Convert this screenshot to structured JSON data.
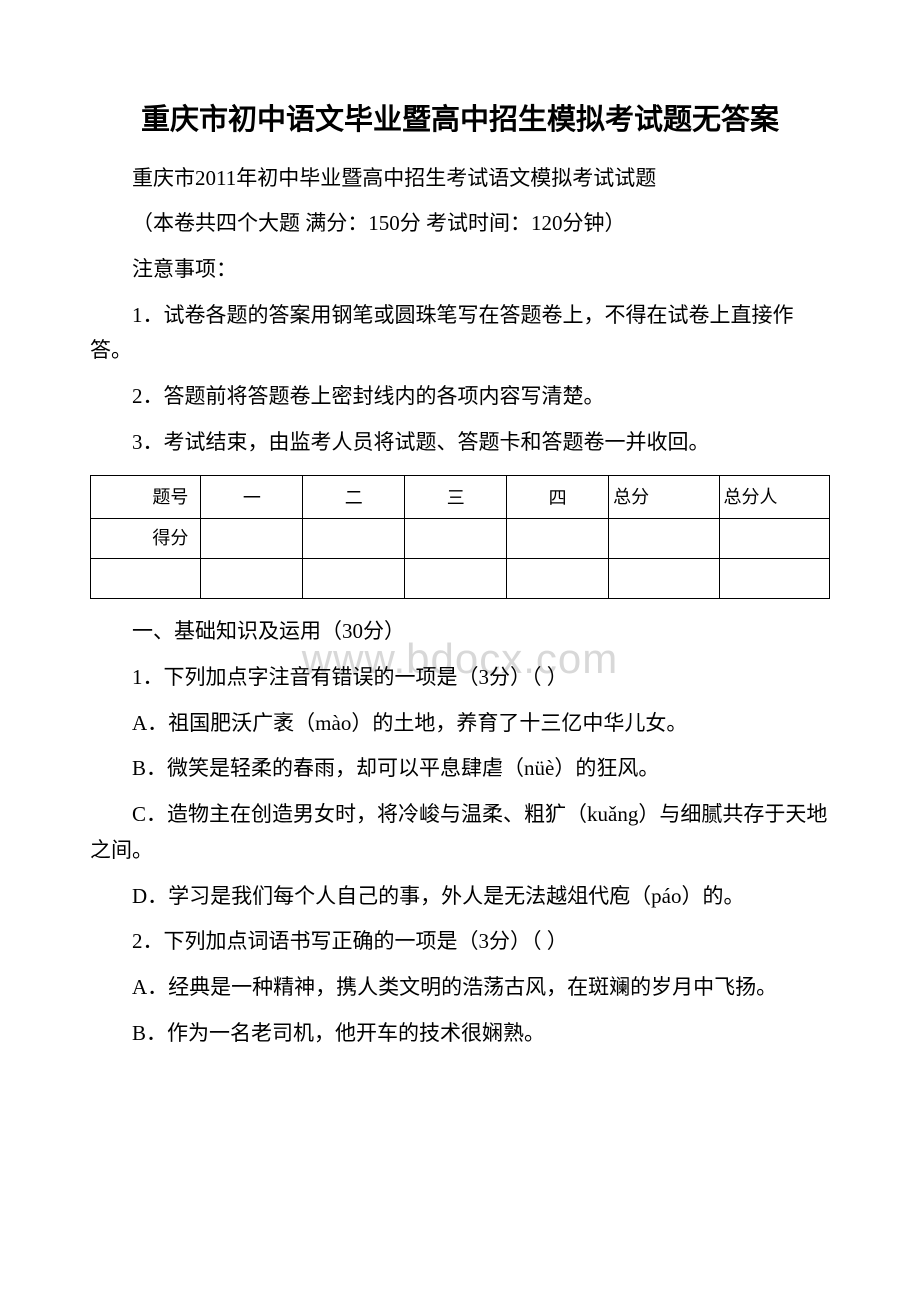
{
  "title": "重庆市初中语文毕业暨高中招生模拟考试题无答案",
  "subtitle": "重庆市2011年初中毕业暨高中招生考试语文模拟考试试题",
  "info": "（本卷共四个大题 满分：150分 考试时间：120分钟）",
  "notice_header": "注意事项：",
  "notice1": "1．试卷各题的答案用钢笔或圆珠笔写在答题卷上，不得在试卷上直接作答。",
  "notice2": "2．答题前将答题卷上密封线内的各项内容写清楚。",
  "notice3": "3．考试结束，由监考人员将试题、答题卡和答题卷一并收回。",
  "table": {
    "row1_label": "题号",
    "row1_cols": [
      "一",
      "二",
      "三",
      "四"
    ],
    "row1_score_label": "总分",
    "row1_person_label": "总分人",
    "row2_label": "得分"
  },
  "section1_title": "一、基础知识及运用（30分）",
  "q1": "1．下列加点字注音有错误的一项是（3分）（ ）",
  "q1a": "A．祖国肥沃广袤（mào）的土地，养育了十三亿中华儿女。",
  "q1b": "B．微笑是轻柔的春雨，却可以平息肆虐（nüè）的狂风。",
  "q1c": "C．造物主在创造男女时，将冷峻与温柔、粗犷（kuǎng）与细腻共存于天地之间。",
  "q1d": "D．学习是我们每个人自己的事，外人是无法越俎代庖（páo）的。",
  "q2": "2．下列加点词语书写正确的一项是（3分）（ ）",
  "q2a": "A．经典是一种精神，携人类文明的浩荡古风，在斑斓的岁月中飞扬。",
  "q2b": "B．作为一名老司机，他开车的技术很娴熟。",
  "watermark": "www.bdocx.com"
}
